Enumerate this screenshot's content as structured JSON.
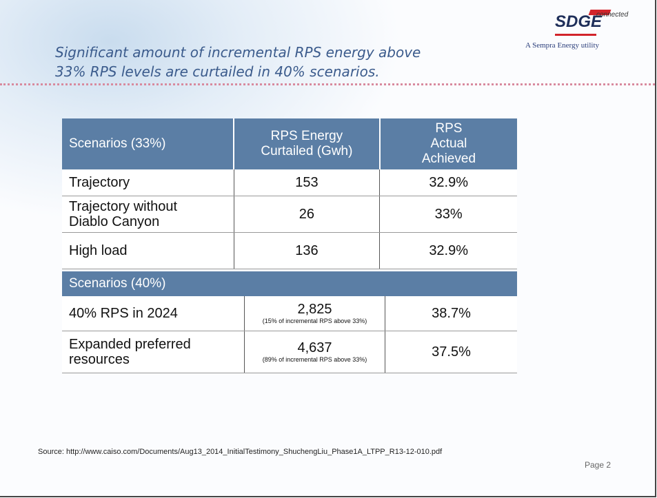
{
  "header": {
    "title": [
      "Significant amount of incremental RPS energy above",
      "33% RPS levels are curtailed in 40% scenarios."
    ],
    "logo": {
      "brand": "SDGE",
      "tag": "connected",
      "parent": "A Sempra Energy utility"
    }
  },
  "table": {
    "columns": [
      "Scenarios (33%)",
      "RPS Energy Curtailed (Gwh)",
      "RPS Actual Achieved"
    ],
    "rows": [
      {
        "scenario": "Trajectory",
        "curtailed": "153",
        "achieved": "32.9%"
      },
      {
        "scenario": "Trajectory without Diablo Canyon",
        "curtailed": "26",
        "achieved": "33%"
      },
      {
        "scenario": "High load",
        "curtailed": "136",
        "achieved": "32.9%"
      }
    ],
    "section": "Scenarios (40%)",
    "rows_40": [
      {
        "scenario": "40% RPS in 2024",
        "curtailed": "2,825",
        "note": "(15% of incremental RPS above 33%)",
        "achieved": "38.7%"
      },
      {
        "scenario": "Expanded preferred resources",
        "curtailed": "4,637",
        "note": "(89% of incremental RPS above 33%)",
        "achieved": "37.5%"
      }
    ]
  },
  "footer": {
    "source": "Source: http://www.caiso.com/Documents/Aug13_2014_InitialTestimony_ShuchengLiu_Phase1A_LTPP_R13-12-010.pdf",
    "page": "Page 2"
  }
}
